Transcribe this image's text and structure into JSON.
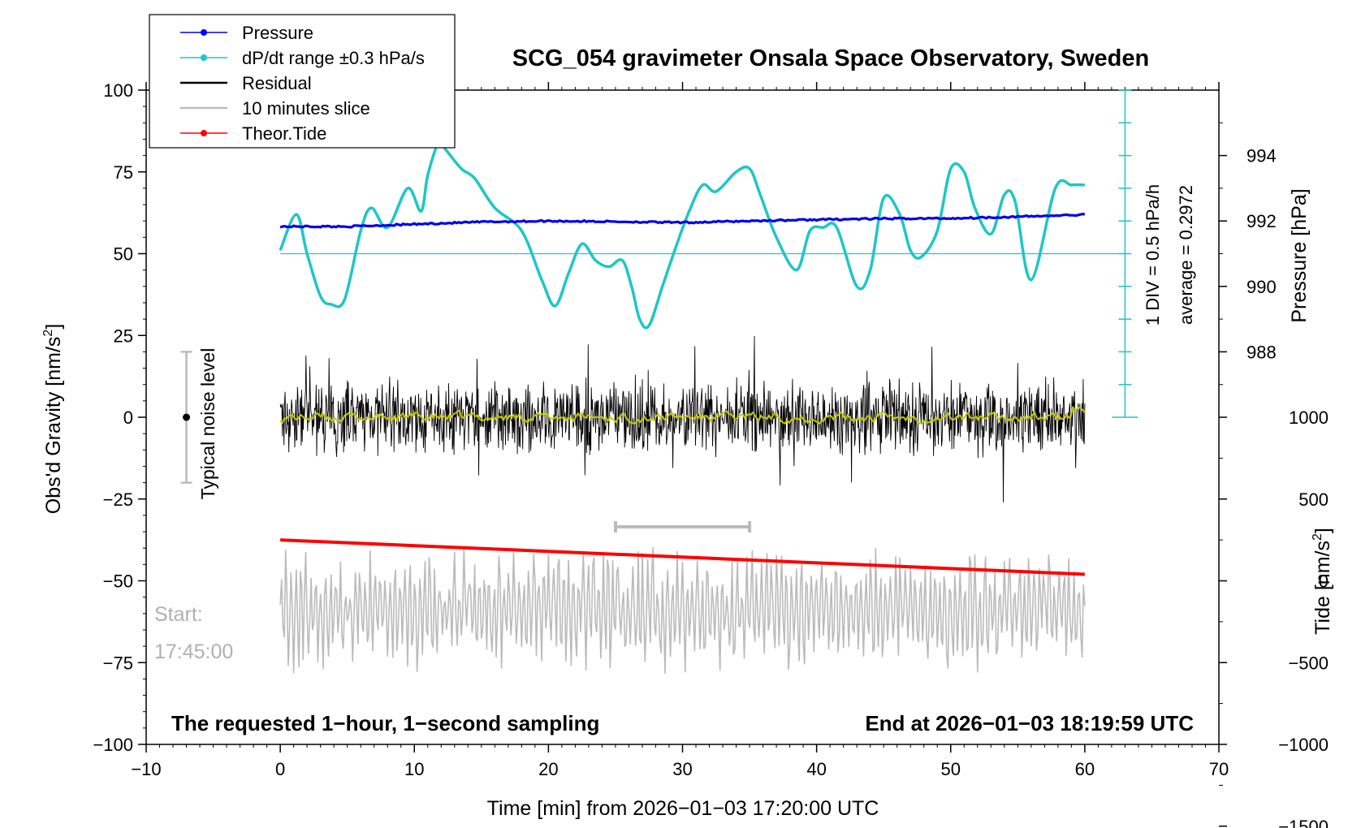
{
  "chart_data": {
    "type": "line",
    "title": "SCG_054 gravimeter Onsala Space Observatory, Sweden",
    "xlabel": "Time [min] from 2026−01−03 17:20:00 UTC",
    "xlim": [
      -10,
      70
    ],
    "xticks": [
      -10,
      0,
      10,
      20,
      30,
      40,
      50,
      60,
      70
    ],
    "xtick_labels": [
      "−10",
      "0",
      "10",
      "20",
      "30",
      "40",
      "50",
      "60",
      "70"
    ],
    "left_axis": {
      "label": "Obs'd Gravity [nm/s",
      "label_sup": "2",
      "label_end": "]",
      "ylim": [
        -100,
        100
      ],
      "ticks": [
        -100,
        -75,
        -50,
        -25,
        0,
        25,
        50,
        75,
        100
      ],
      "tick_labels": [
        "−100",
        "−75",
        "−50",
        "−25",
        "0",
        "25",
        "50",
        "75",
        "100"
      ]
    },
    "pressure_axis": {
      "label": "Pressure [hPa]",
      "ticks": [
        988,
        990,
        992,
        994
      ],
      "tick_labels": [
        "988",
        "990",
        "992",
        "994"
      ],
      "grav_at_988": 20,
      "grav_per_hpa": 10
    },
    "tide_axis": {
      "label": "Tide [nm/s",
      "label_sup": "2",
      "label_end": "]",
      "ticks": [
        -1500,
        -1000,
        -500,
        0,
        500,
        1000
      ],
      "tick_labels": [
        "−1500",
        "−1000",
        "−500",
        "0",
        "500",
        "1000"
      ],
      "grav_at_0": -50,
      "grav_per_unit": 0.05
    },
    "rate_axis": {
      "label_line1": "1 DIV = 0.5 hPa/h",
      "label_line2": "average = 0.2972",
      "x_position": 63,
      "grav_min": 0,
      "grav_max": 100,
      "grav_baseline": 50,
      "ticks": [
        0,
        10,
        20,
        30,
        40,
        50,
        60,
        70,
        80,
        90,
        100
      ]
    },
    "legend": {
      "position": "top-left",
      "items": [
        {
          "label": "Pressure",
          "color": "#0000ee",
          "marker": true
        },
        {
          "label": "dP/dt range ±0.3 hPa/s",
          "color": "#1fc6c6",
          "marker": true
        },
        {
          "label": "Residual",
          "color": "#000000",
          "marker": false
        },
        {
          "label": "10 minutes slice",
          "color": "#bbbbbb",
          "marker": false
        },
        {
          "label": "Theor.Tide",
          "color": "#ff0000",
          "marker": true
        }
      ]
    },
    "noise_indicator": {
      "label": "Typical noise level",
      "x": -7,
      "center": 0,
      "half_range": 20
    },
    "slice_bracket": {
      "x_start": 25,
      "x_end": 35,
      "y": -33.5
    },
    "start_label": {
      "line1": "Start:",
      "line2": "17:45:00"
    },
    "bottom_left_note": "The requested 1−hour, 1−second sampling",
    "bottom_right_note": "End at 2026−01−03 18:19:59 UTC",
    "series": [
      {
        "name": "Pressure",
        "color": "#0000ee",
        "x": [
          0,
          5,
          10,
          15,
          20,
          25,
          30,
          35,
          40,
          45,
          50,
          55,
          60
        ],
        "y": [
          58.3,
          58.3,
          59.0,
          59.7,
          60.0,
          59.8,
          59.5,
          60.0,
          60.4,
          60.7,
          60.8,
          61.3,
          61.9
        ]
      },
      {
        "name": "dP/dt range ±0.3 hPa/s",
        "color": "#1fc6c6",
        "x": [
          0,
          1.2,
          2,
          3,
          3.8,
          4.8,
          6,
          6.8,
          8,
          9.5,
          10.5,
          11,
          11.8,
          12.3,
          13.5,
          14.5,
          16,
          18,
          19.5,
          20.5,
          21.5,
          22.5,
          23.5,
          24.5,
          25.5,
          26.2,
          26.8,
          27.5,
          28.5,
          29.5,
          30.5,
          31.5,
          32.5,
          34,
          35,
          35.8,
          37,
          38.5,
          39.5,
          40.5,
          41.5,
          43,
          44,
          45,
          46.2,
          47,
          47.8,
          49,
          50,
          51,
          51.8,
          53,
          54,
          54.8,
          56,
          57.8,
          59,
          60
        ],
        "y": [
          51,
          62,
          50,
          37,
          34.5,
          36,
          57,
          64,
          58,
          70,
          63,
          74,
          84,
          82,
          76,
          73,
          64,
          57,
          42,
          34,
          44,
          53,
          48,
          46,
          48,
          40,
          30,
          28,
          40,
          52,
          63,
          71,
          69,
          75,
          76,
          68,
          55,
          45,
          57,
          58,
          58,
          40,
          45,
          67,
          62,
          51,
          49,
          57,
          76,
          75,
          64,
          56,
          68,
          66,
          42,
          70,
          71,
          71
        ]
      },
      {
        "name": "Theor.Tide",
        "color": "#ff0000",
        "x": [
          0,
          60
        ],
        "y": [
          -37.5,
          -48
        ]
      },
      {
        "name": "Residual",
        "color": "#000000",
        "x_range": [
          0,
          60
        ],
        "center": 0,
        "typical_amplitude": 8,
        "envelope": [
          -27.5,
          27.5
        ]
      },
      {
        "name": "Residual smoothed",
        "color": "#c8c800",
        "x_range": [
          0,
          60
        ],
        "center": 0,
        "envelope": [
          -2,
          3
        ]
      },
      {
        "name": "10 minutes slice",
        "color": "#bbbbbb",
        "x_range": [
          0,
          60
        ],
        "center": -59,
        "envelope": [
          -85,
          -34
        ]
      }
    ]
  }
}
